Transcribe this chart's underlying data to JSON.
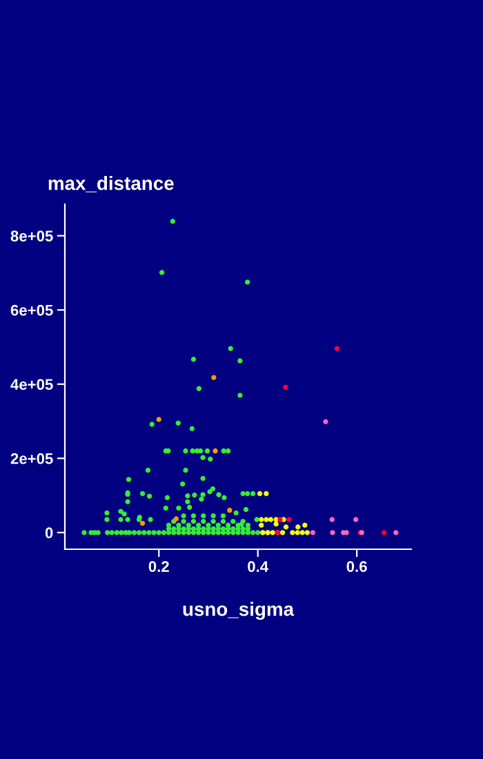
{
  "chart_data": {
    "type": "scatter",
    "xlabel": "usno_sigma",
    "ylabel": "max_distance",
    "xlim": [
      0.01,
      0.71
    ],
    "ylim": [
      -45000,
      885000
    ],
    "xticks": [
      0.2,
      0.4,
      0.6
    ],
    "yticks": [
      0,
      {
        "value": 200000,
        "label": "2e+05"
      },
      {
        "value": 400000,
        "label": "4e+05"
      },
      {
        "value": 600000,
        "label": "6e+05"
      },
      {
        "value": 800000,
        "label": "8e+05"
      }
    ],
    "marker": "circle",
    "series": [
      {
        "color": "#33ee33",
        "x": [
          0.228,
          0.206,
          0.379,
          0.345,
          0.27,
          0.364,
          0.281,
          0.364,
          0.186,
          0.239,
          0.267,
          0.214,
          0.219,
          0.254,
          0.268,
          0.277,
          0.284,
          0.298,
          0.331,
          0.34,
          0.289,
          0.304,
          0.178,
          0.254,
          0.139,
          0.289,
          0.248,
          0.137,
          0.137,
          0.167,
          0.181,
          0.137,
          0.217,
          0.37,
          0.379,
          0.39,
          0.289,
          0.303,
          0.309,
          0.321,
          0.332,
          0.258,
          0.272,
          0.286,
          0.258,
          0.095,
          0.123,
          0.137,
          0.16,
          0.183,
          0.095,
          0.123,
          0.13,
          0.161,
          0.214,
          0.24,
          0.262,
          0.376,
          0.356,
          0.398,
          0.367,
          0.049,
          0.063,
          0.07,
          0.077,
          0.096,
          0.105,
          0.115,
          0.124,
          0.133,
          0.14,
          0.15,
          0.16,
          0.17,
          0.18,
          0.19,
          0.2,
          0.21,
          0.22,
          0.23,
          0.24,
          0.25,
          0.26,
          0.27,
          0.28,
          0.29,
          0.3,
          0.31,
          0.32,
          0.33,
          0.34,
          0.35,
          0.36,
          0.37,
          0.38,
          0.39,
          0.4,
          0.41,
          0.42,
          0.22,
          0.23,
          0.24,
          0.25,
          0.26,
          0.27,
          0.28,
          0.29,
          0.3,
          0.31,
          0.32,
          0.33,
          0.34,
          0.35,
          0.36,
          0.37,
          0.38,
          0.22,
          0.24,
          0.26,
          0.28,
          0.3,
          0.32,
          0.34,
          0.36,
          0.38,
          0.23,
          0.25,
          0.27,
          0.29,
          0.31,
          0.33,
          0.35,
          0.37,
          0.25,
          0.27,
          0.29,
          0.31,
          0.33
        ],
        "values": [
          839000,
          701000,
          675000,
          496000,
          467000,
          463000,
          388000,
          370000,
          292000,
          295000,
          280000,
          220000,
          220000,
          220000,
          220000,
          220000,
          220000,
          220000,
          220000,
          220000,
          202000,
          198000,
          168000,
          168000,
          143000,
          146000,
          131000,
          107000,
          103000,
          105000,
          98000,
          83000,
          94000,
          105000,
          105000,
          105000,
          102000,
          110000,
          118000,
          102000,
          94000,
          99000,
          101000,
          90000,
          83000,
          35000,
          35000,
          35000,
          35000,
          35000,
          53000,
          57000,
          50000,
          41000,
          66000,
          66000,
          68000,
          62000,
          53000,
          35000,
          22000,
          0,
          0,
          0,
          0,
          0,
          0,
          0,
          0,
          0,
          0,
          0,
          0,
          0,
          0,
          0,
          0,
          0,
          0,
          0,
          0,
          0,
          0,
          0,
          0,
          0,
          0,
          0,
          0,
          0,
          0,
          0,
          0,
          0,
          0,
          0,
          0,
          0,
          0,
          10000,
          10000,
          10000,
          10000,
          10000,
          10000,
          10000,
          10000,
          10000,
          10000,
          10000,
          10000,
          10000,
          10000,
          10000,
          10000,
          10000,
          20000,
          20000,
          20000,
          20000,
          20000,
          20000,
          20000,
          20000,
          20000,
          30000,
          30000,
          30000,
          30000,
          30000,
          30000,
          30000,
          30000,
          45000,
          45000,
          45000,
          45000,
          45000
        ]
      },
      {
        "color": "#ffff00",
        "x": [
          0.404,
          0.417,
          0.41,
          0.42,
          0.43,
          0.44,
          0.45,
          0.47,
          0.48,
          0.49,
          0.5,
          0.407,
          0.417,
          0.426,
          0.437,
          0.452,
          0.407,
          0.437,
          0.457,
          0.481,
          0.495
        ],
        "values": [
          105000,
          105000,
          0,
          0,
          0,
          0,
          0,
          0,
          0,
          0,
          0,
          35000,
          35000,
          35000,
          35000,
          35000,
          20000,
          23000,
          15000,
          15000,
          20000
        ]
      },
      {
        "color": "#ff9900",
        "x": [
          0.311,
          0.2,
          0.314,
          0.167,
          0.343,
          0.235
        ],
        "values": [
          418000,
          305000,
          220000,
          25000,
          60000,
          37000
        ]
      },
      {
        "color": "#ff0033",
        "x": [
          0.56,
          0.456,
          0.44,
          0.607,
          0.655,
          0.445,
          0.463
        ],
        "values": [
          496000,
          392000,
          0,
          0,
          0,
          35000,
          35000
        ]
      },
      {
        "color": "#ff66bb",
        "x": [
          0.537,
          0.511,
          0.551,
          0.573,
          0.579,
          0.61,
          0.679,
          0.55,
          0.598
        ],
        "values": [
          299000,
          0,
          0,
          0,
          0,
          0,
          0,
          35000,
          35000
        ]
      }
    ]
  }
}
